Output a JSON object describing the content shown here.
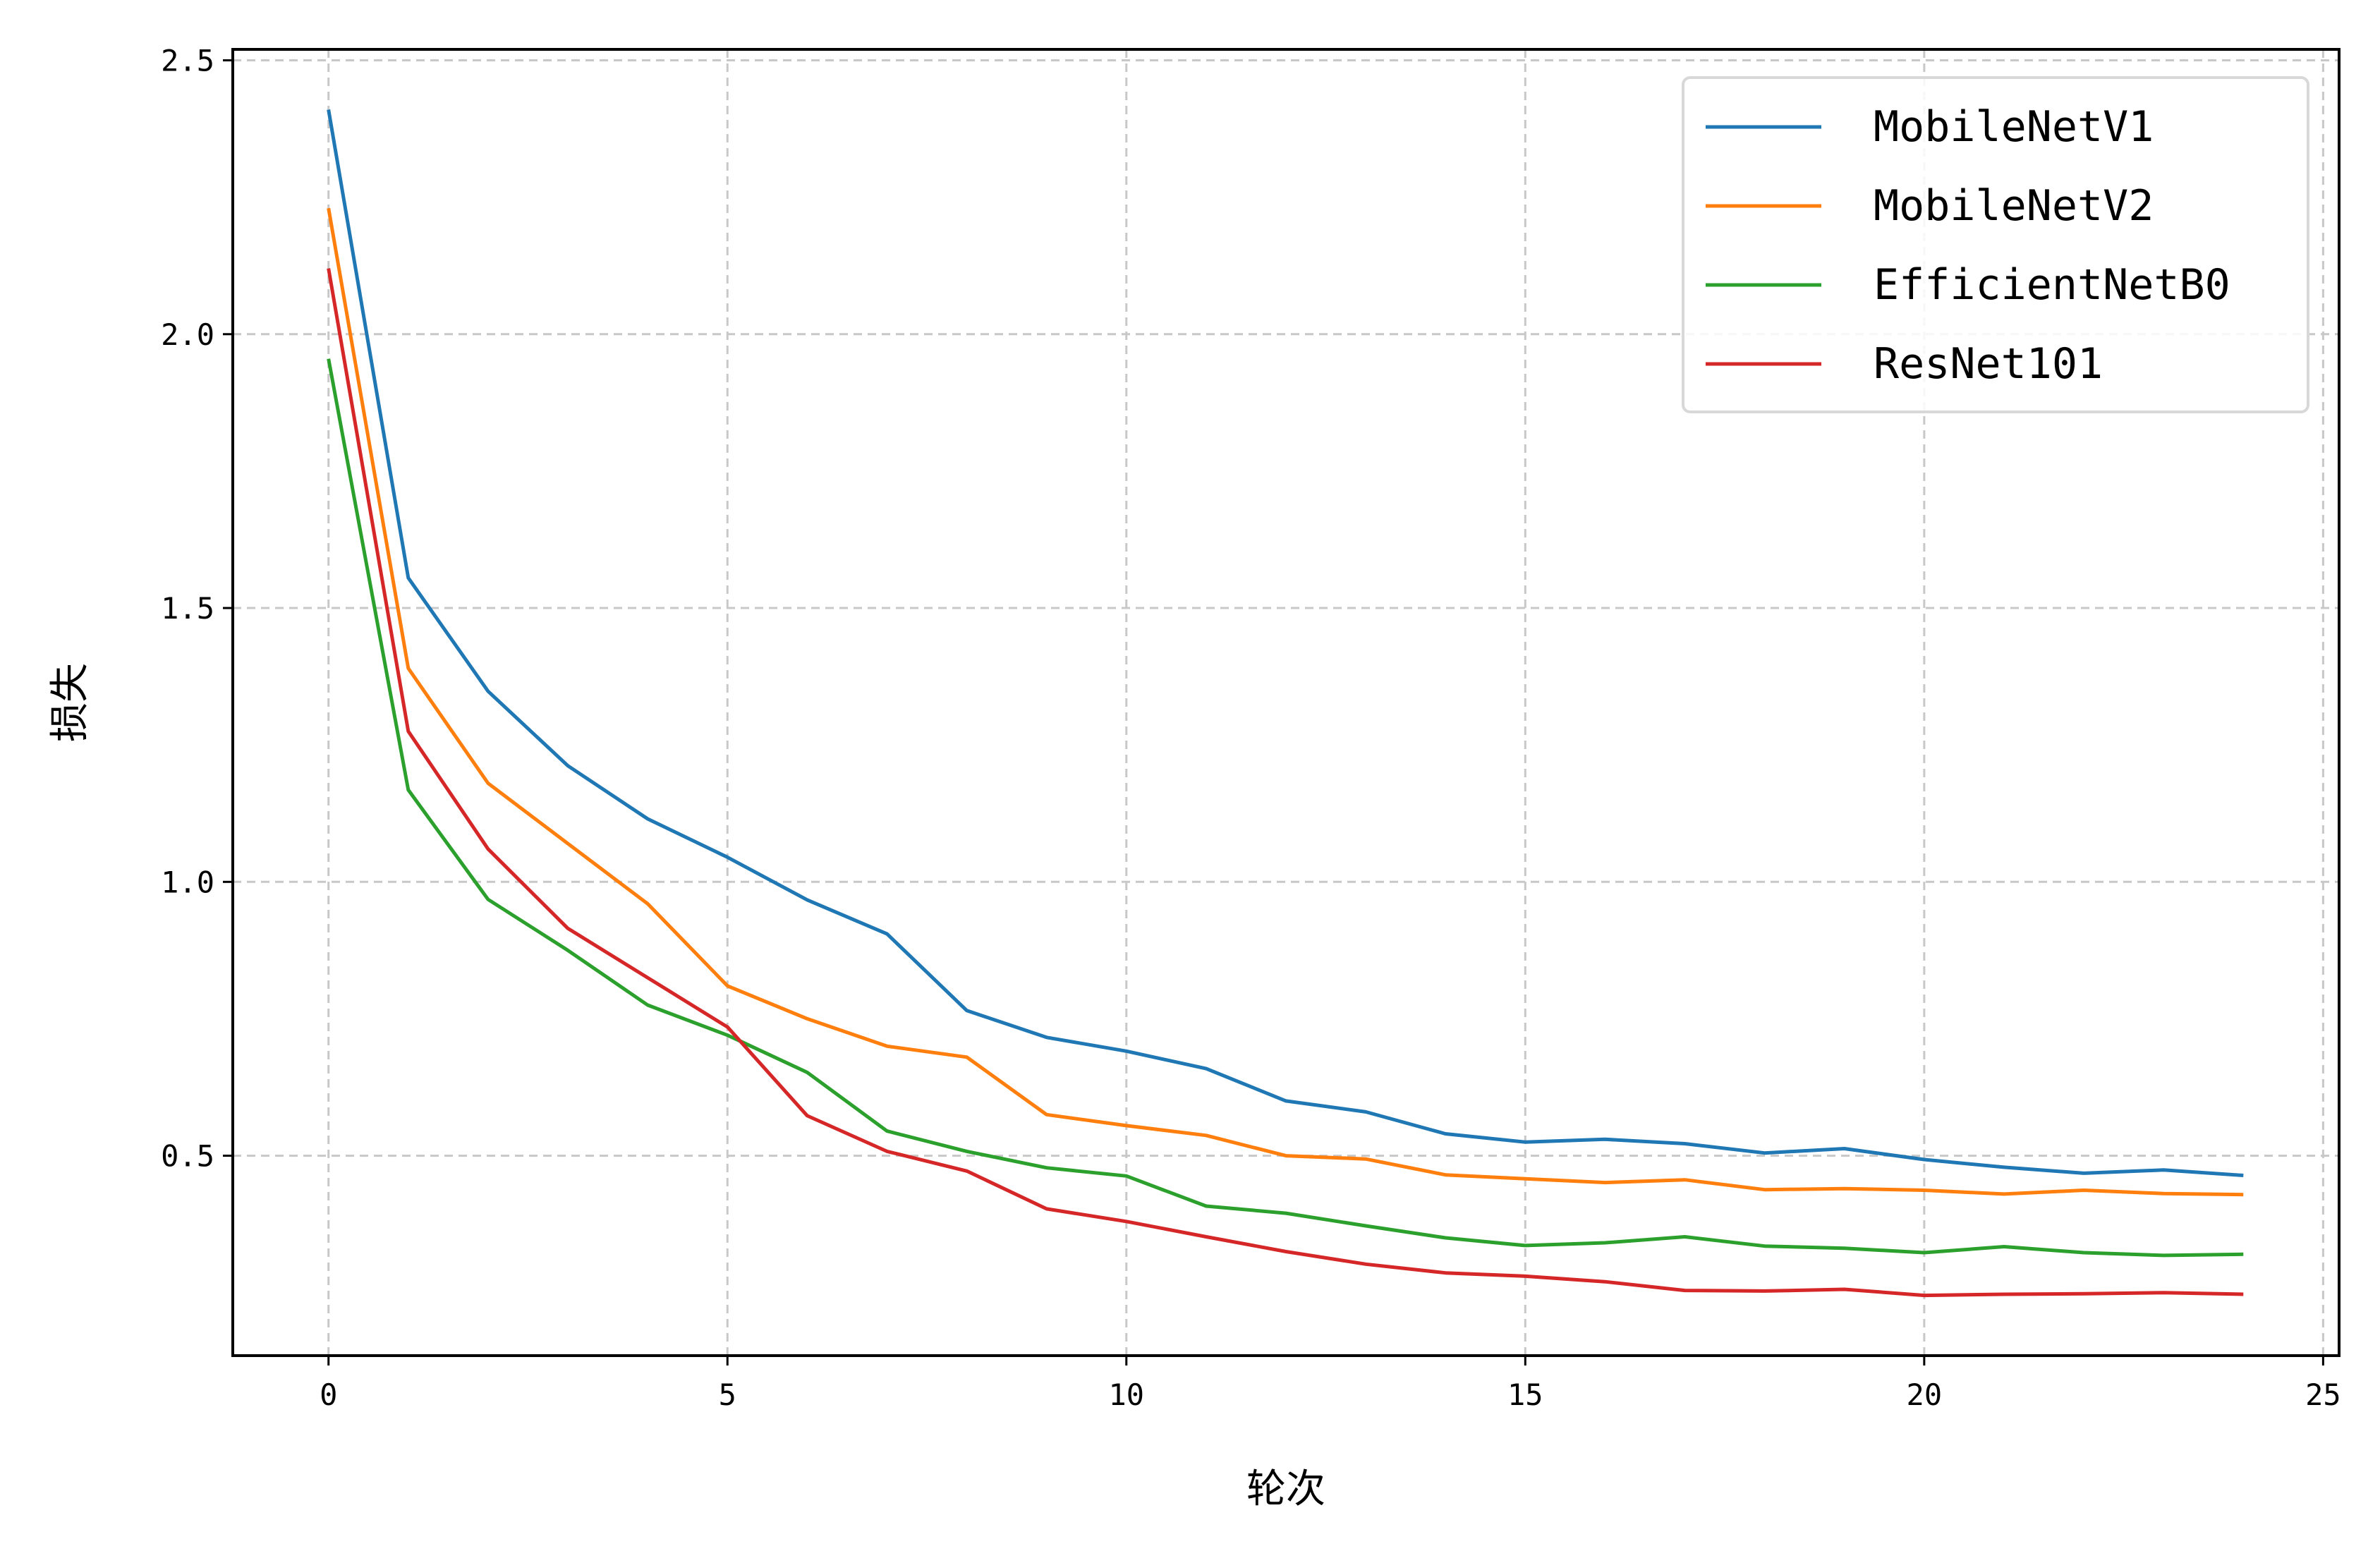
{
  "chart_data": {
    "type": "line",
    "xlabel": "轮次",
    "ylabel": "损失",
    "xlim": [
      -1.2,
      25.2
    ],
    "ylim": [
      0.135,
      2.52
    ],
    "xticks": [
      0,
      5,
      10,
      15,
      20,
      25
    ],
    "yticks": [
      0.5,
      1.0,
      1.5,
      2.0,
      2.5
    ],
    "xtick_labels": [
      "0",
      "5",
      "10",
      "15",
      "20",
      "25"
    ],
    "ytick_labels": [
      "0.5",
      "1.0",
      "1.5",
      "2.0",
      "2.5"
    ],
    "grid": true,
    "legend_position": "top-right",
    "x": [
      0,
      1,
      2,
      3,
      4,
      5,
      6,
      7,
      8,
      9,
      10,
      11,
      12,
      13,
      14,
      15,
      16,
      17,
      18,
      19,
      20,
      21,
      22,
      23,
      24
    ],
    "series": [
      {
        "name": "MobileNetV1",
        "color": "#1f77b4",
        "values": [
          2.41,
          1.555,
          1.348,
          1.212,
          1.115,
          1.045,
          0.967,
          0.905,
          0.765,
          0.716,
          0.691,
          0.659,
          0.6,
          0.58,
          0.54,
          0.525,
          0.53,
          0.522,
          0.505,
          0.513,
          0.493,
          0.479,
          0.468,
          0.474,
          0.464
        ]
      },
      {
        "name": "MobileNetV2",
        "color": "#ff7f0e",
        "values": [
          2.23,
          1.39,
          1.18,
          1.07,
          0.96,
          0.81,
          0.75,
          0.7,
          0.68,
          0.575,
          0.555,
          0.537,
          0.5,
          0.494,
          0.465,
          0.458,
          0.451,
          0.456,
          0.438,
          0.44,
          0.437,
          0.43,
          0.437,
          0.431,
          0.429
        ]
      },
      {
        "name": "EfficientNetB0",
        "color": "#2ca02c",
        "values": [
          1.955,
          1.168,
          0.968,
          0.875,
          0.775,
          0.72,
          0.652,
          0.545,
          0.508,
          0.478,
          0.463,
          0.408,
          0.395,
          0.372,
          0.35,
          0.336,
          0.341,
          0.352,
          0.335,
          0.331,
          0.323,
          0.334,
          0.323,
          0.318,
          0.32
        ]
      },
      {
        "name": "ResNet101",
        "color": "#d62728",
        "values": [
          2.12,
          1.275,
          1.06,
          0.915,
          0.825,
          0.735,
          0.573,
          0.508,
          0.472,
          0.403,
          0.38,
          0.352,
          0.325,
          0.302,
          0.286,
          0.28,
          0.27,
          0.254,
          0.253,
          0.256,
          0.245,
          0.247,
          0.248,
          0.25,
          0.247
        ]
      }
    ]
  }
}
